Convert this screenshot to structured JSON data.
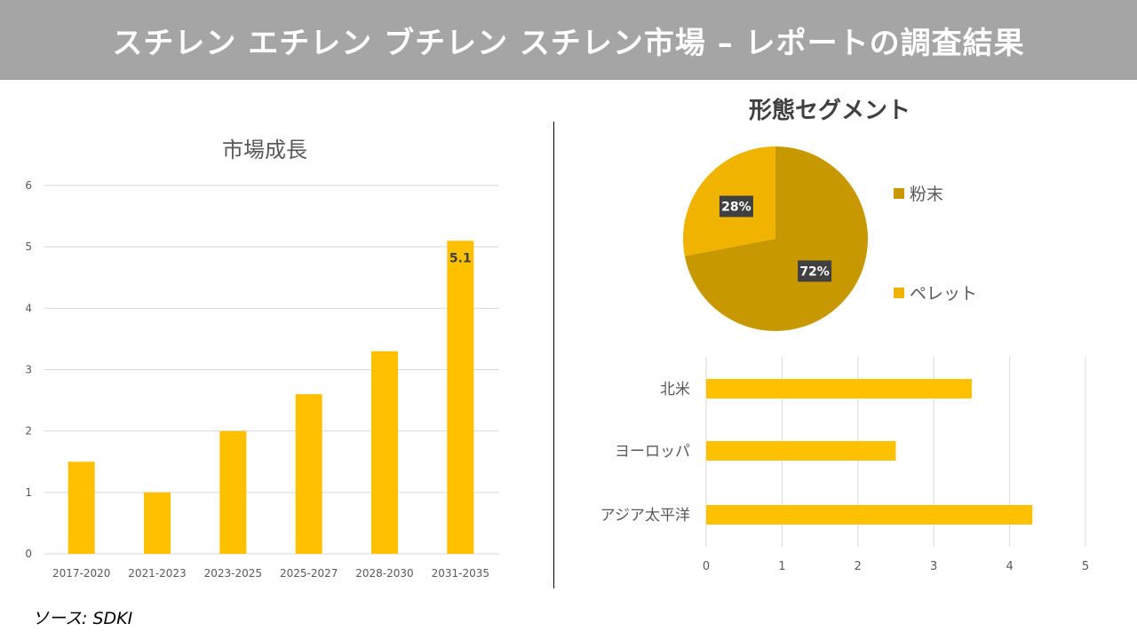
{
  "header": {
    "title": "スチレン エチレン ブチレン スチレン市場 – レポートの調査結果"
  },
  "source": "ソース: SDKI",
  "colors": {
    "bar": "#FFC000",
    "powder": "#C89800",
    "pellet": "#F0B400",
    "header_bg": "#A5A5A5"
  },
  "chart_data": [
    {
      "type": "bar",
      "title": "市場成長",
      "categories": [
        "2017-2020",
        "2021-2023",
        "2023-2025",
        "2025-2027",
        "2028-2030",
        "2031-2035"
      ],
      "values": [
        1.5,
        1.0,
        2.0,
        2.6,
        3.3,
        5.1
      ],
      "ylim": [
        0,
        6
      ],
      "yticks": [
        "0",
        "1",
        "2",
        "3",
        "4",
        "5",
        "6"
      ],
      "data_labels": {
        "5": "5.1"
      },
      "grid": true
    },
    {
      "type": "pie",
      "title": "形態セグメント",
      "slices": [
        {
          "name": "粉末",
          "value": 72,
          "label": "72%"
        },
        {
          "name": "ペレット",
          "value": 28,
          "label": "28%"
        }
      ],
      "legend": "right"
    },
    {
      "type": "bar",
      "orientation": "horizontal",
      "categories": [
        "北米",
        "ヨーロッパ",
        "アジア太平洋"
      ],
      "values": [
        3.5,
        2.5,
        4.3
      ],
      "xlim": [
        0,
        5
      ],
      "xticks": [
        "0",
        "1",
        "2",
        "3",
        "4",
        "5"
      ],
      "grid": true
    }
  ]
}
